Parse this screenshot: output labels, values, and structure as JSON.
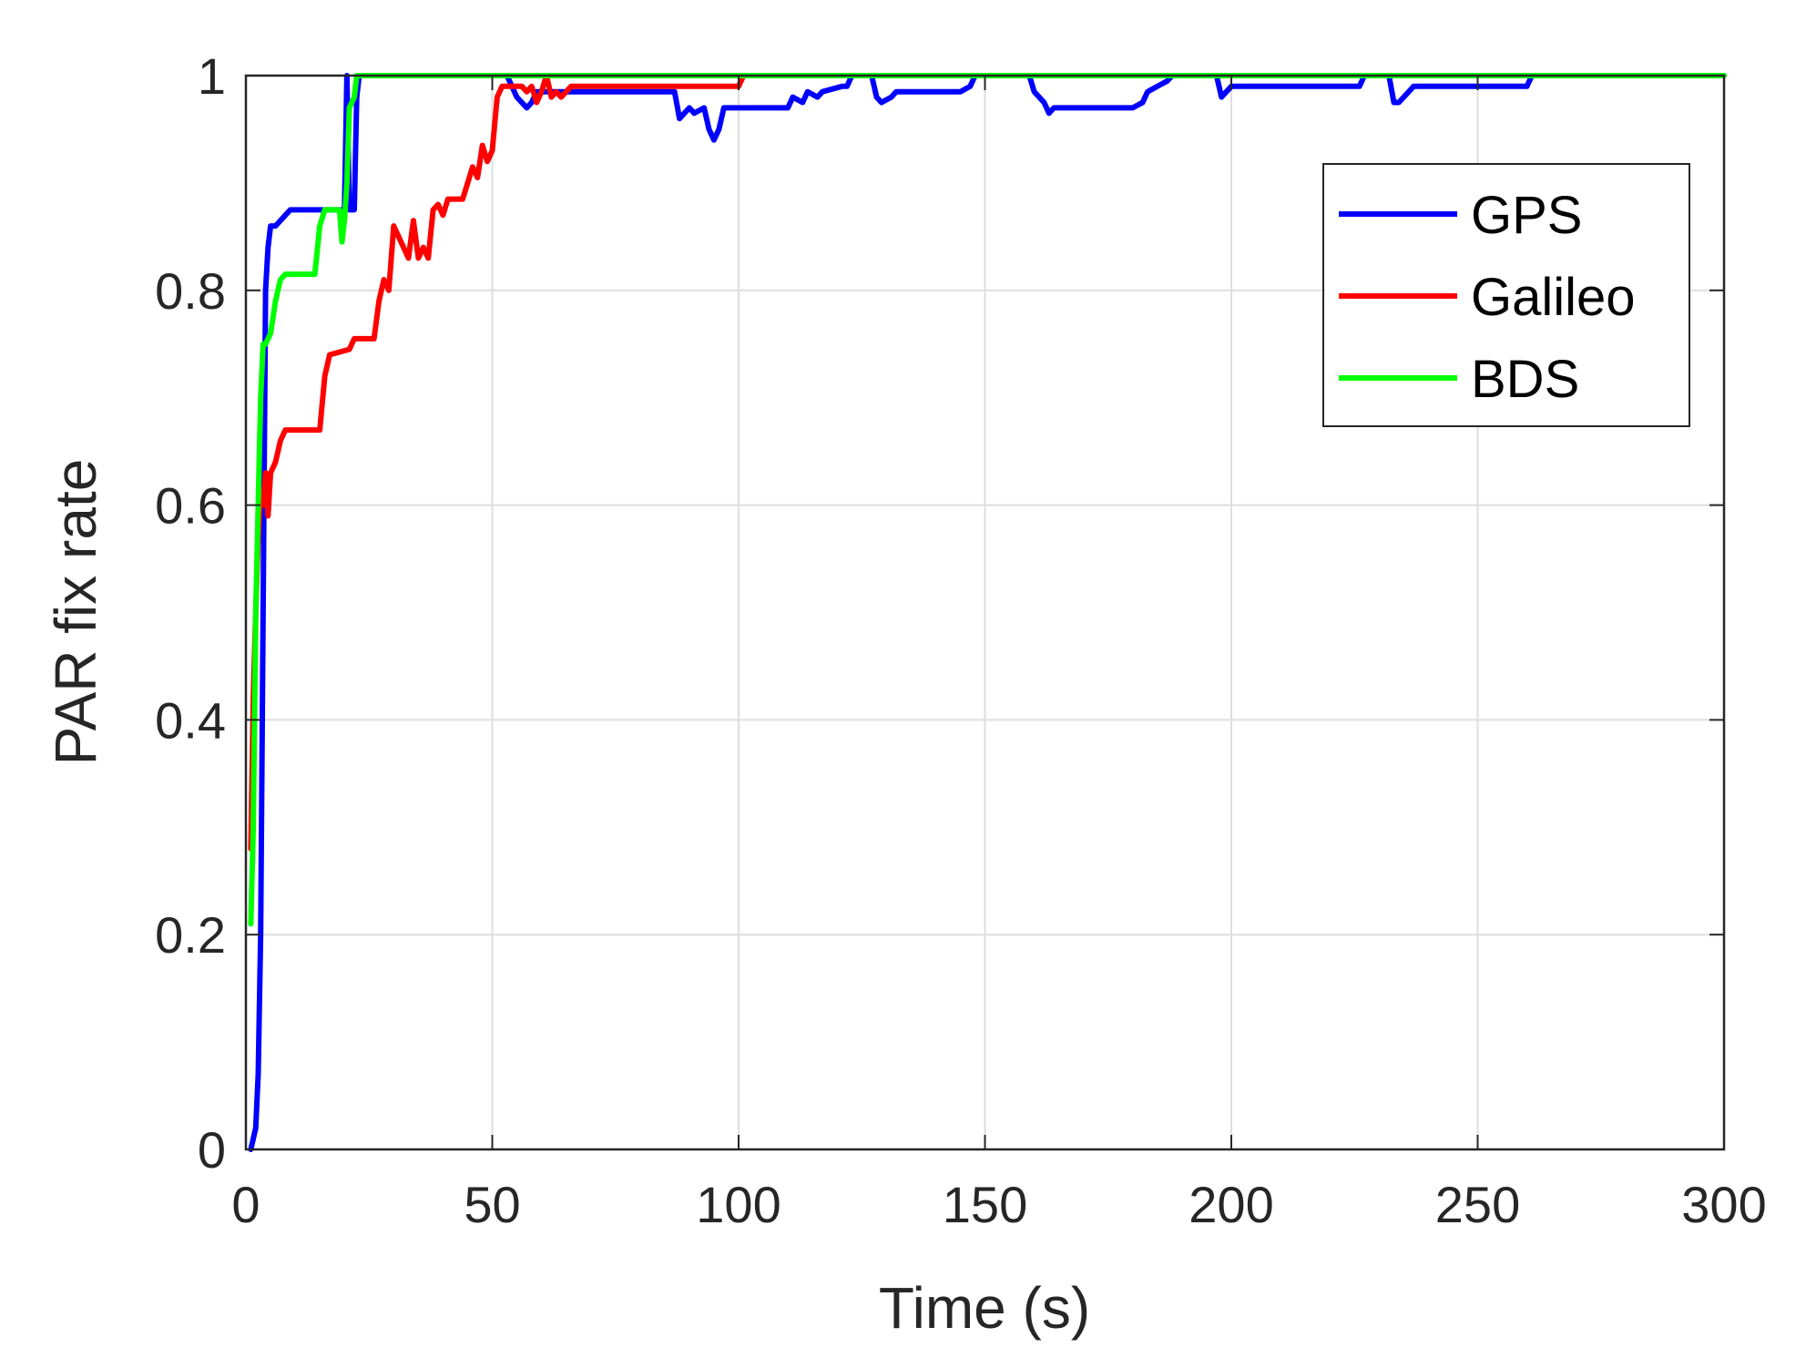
{
  "chart_data": {
    "type": "line",
    "xlabel": "Time (s)",
    "ylabel": "PAR fix rate",
    "xlim": [
      0,
      300
    ],
    "ylim": [
      0,
      1
    ],
    "xticks": [
      0,
      50,
      100,
      150,
      200,
      250,
      300
    ],
    "yticks": [
      0,
      0.2,
      0.4,
      0.6,
      0.8,
      1
    ],
    "xtick_labels": [
      "0",
      "50",
      "100",
      "150",
      "200",
      "250",
      "300"
    ],
    "ytick_labels": [
      "0",
      "0.2",
      "0.4",
      "0.6",
      "0.8",
      "1"
    ],
    "grid": true,
    "legend_position": "top-right",
    "series": [
      {
        "name": "GPS",
        "color": "#0000ff",
        "x": [
          1,
          2,
          2.5,
          3,
          3.5,
          4,
          4.5,
          5,
          6,
          8,
          9,
          12,
          18,
          20,
          20.5,
          21,
          21.5,
          22,
          22.5,
          23,
          24,
          25,
          53,
          55,
          57,
          58,
          59,
          60,
          62,
          64,
          80,
          87,
          88,
          90,
          91,
          93,
          94,
          95,
          96,
          97,
          110,
          111,
          113,
          114,
          116,
          117,
          121,
          122,
          123,
          125,
          127,
          128,
          129,
          131,
          132,
          145,
          147,
          148,
          159,
          160,
          161,
          162,
          163,
          164,
          165,
          170,
          180,
          182,
          183,
          185,
          187,
          188,
          197,
          198,
          199,
          200,
          210,
          225,
          226,
          227,
          232,
          233,
          234,
          236,
          237,
          258,
          260,
          261,
          300
        ],
        "y": [
          0,
          0.02,
          0.07,
          0.2,
          0.5,
          0.8,
          0.84,
          0.86,
          0.86,
          0.87,
          0.875,
          0.875,
          0.875,
          0.875,
          1.0,
          0.875,
          0.875,
          0.875,
          0.98,
          1.0,
          1.0,
          1.0,
          1.0,
          0.98,
          0.97,
          0.975,
          0.985,
          0.985,
          0.985,
          0.985,
          0.985,
          0.985,
          0.96,
          0.97,
          0.965,
          0.97,
          0.95,
          0.94,
          0.95,
          0.97,
          0.97,
          0.98,
          0.975,
          0.985,
          0.98,
          0.985,
          0.99,
          0.99,
          1.0,
          1.0,
          1.0,
          0.98,
          0.975,
          0.98,
          0.985,
          0.985,
          0.99,
          1.0,
          1.0,
          0.985,
          0.98,
          0.975,
          0.965,
          0.97,
          0.97,
          0.97,
          0.97,
          0.975,
          0.985,
          0.99,
          0.995,
          1.0,
          1.0,
          0.98,
          0.985,
          0.99,
          0.99,
          0.99,
          0.99,
          1.0,
          1.0,
          0.975,
          0.975,
          0.985,
          0.99,
          0.99,
          0.99,
          1.0,
          1.0
        ]
      },
      {
        "name": "Galileo",
        "color": "#ff0000",
        "x": [
          1,
          1.5,
          2,
          2.5,
          3,
          3.5,
          4,
          4.5,
          5,
          6,
          7,
          8,
          15,
          16,
          17,
          21,
          22,
          26,
          27,
          28,
          29,
          30,
          31,
          32,
          33,
          34,
          35,
          36,
          37,
          38,
          39,
          40,
          41,
          44,
          45,
          46,
          47,
          48,
          49,
          50,
          51,
          52,
          56,
          57,
          58,
          59,
          60,
          61,
          62,
          63,
          64,
          65,
          66,
          67,
          68,
          80,
          100,
          101
        ],
        "y": [
          0.28,
          0.42,
          0.5,
          0.57,
          0.61,
          0.6,
          0.63,
          0.59,
          0.63,
          0.64,
          0.66,
          0.67,
          0.67,
          0.72,
          0.74,
          0.745,
          0.755,
          0.755,
          0.79,
          0.81,
          0.8,
          0.86,
          0.85,
          0.84,
          0.83,
          0.865,
          0.83,
          0.84,
          0.83,
          0.875,
          0.88,
          0.87,
          0.885,
          0.885,
          0.9,
          0.915,
          0.905,
          0.935,
          0.92,
          0.93,
          0.98,
          0.99,
          0.99,
          0.985,
          0.99,
          0.975,
          0.985,
          1.0,
          0.98,
          0.985,
          0.98,
          0.985,
          0.99,
          0.99,
          0.99,
          0.99,
          0.99,
          1.0
        ]
      },
      {
        "name": "BDS",
        "color": "#00ff00",
        "x": [
          1,
          1.5,
          2,
          2.5,
          3,
          3.5,
          4,
          5,
          6,
          7,
          8,
          14,
          15,
          16,
          17,
          18,
          19,
          19.5,
          20,
          20.5,
          21,
          21.5,
          22,
          22.5,
          23,
          24,
          300
        ],
        "y": [
          0.21,
          0.3,
          0.5,
          0.6,
          0.7,
          0.75,
          0.75,
          0.76,
          0.79,
          0.81,
          0.815,
          0.815,
          0.86,
          0.875,
          0.875,
          0.875,
          0.875,
          0.845,
          0.865,
          0.9,
          0.97,
          0.975,
          0.98,
          1.0,
          1.0,
          1.0,
          1.0
        ]
      }
    ]
  }
}
